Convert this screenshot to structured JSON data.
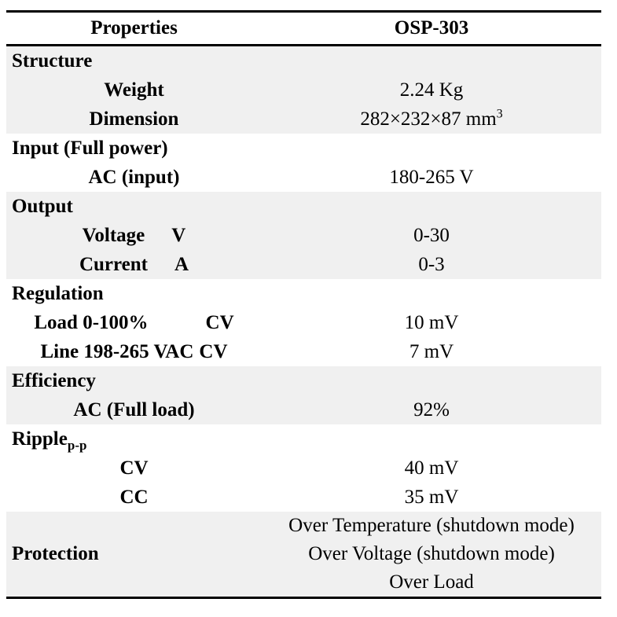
{
  "table": {
    "header": {
      "properties": "Properties",
      "model": "OSP-303"
    },
    "sections": [
      {
        "title": "Structure",
        "rows": [
          {
            "label": "Weight",
            "value": "2.24 Kg"
          },
          {
            "label": "Dimension",
            "value": "282×232×87 mm",
            "value_sup": "3"
          }
        ]
      },
      {
        "title": "Input (Full power)",
        "rows": [
          {
            "label": "AC (input)",
            "value": "180-265 V"
          }
        ]
      },
      {
        "title": "Output",
        "rows": [
          {
            "label": "Voltage",
            "unit": "V",
            "value": "0-30"
          },
          {
            "label": "Current",
            "unit": "A",
            "value": "0-3"
          }
        ]
      },
      {
        "title": "Regulation",
        "rows": [
          {
            "label": "Load 0-100%",
            "unit": "CV",
            "value": "10 mV"
          },
          {
            "label": "Line 198-265 VAC",
            "unit": "CV",
            "value": "7 mV"
          }
        ]
      },
      {
        "title": "Efficiency",
        "rows": [
          {
            "label": "AC (Full load)",
            "value": "92%"
          }
        ]
      },
      {
        "title": "Ripple",
        "title_sub": "p-p",
        "rows": [
          {
            "label": "CV",
            "value": "40 mV"
          },
          {
            "label": "CC",
            "value": "35 mV"
          }
        ]
      },
      {
        "title": "Protection",
        "values": [
          "Over Temperature (shutdown mode)",
          "Over Voltage (shutdown mode)",
          "Over Load"
        ]
      }
    ],
    "colors": {
      "shaded_band_bg": "#f0f0f0",
      "rule": "#000000",
      "text": "#000000"
    }
  }
}
